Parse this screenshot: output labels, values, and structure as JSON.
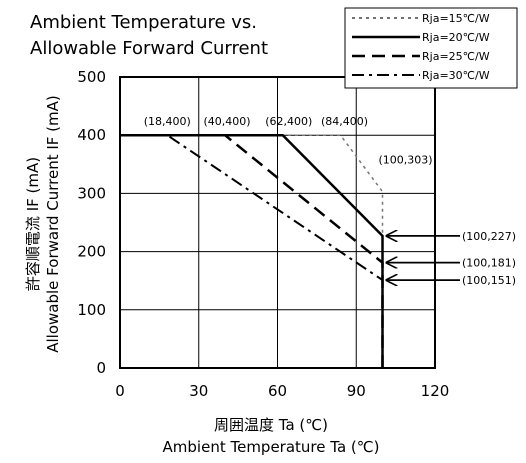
{
  "title_lines": [
    "Ambient Temperature vs.",
    "Allowable Forward Current"
  ],
  "chart_data": {
    "type": "line",
    "title": "Ambient Temperature vs. Allowable Forward Current",
    "xlabel_jp": "周囲温度 Ta (℃)",
    "xlabel": "Ambient Temperature Ta (℃)",
    "ylabel_jp": "許容順電流 IF (mA)",
    "ylabel": "Allowable Forward Current IF (mA)",
    "xlim": [
      0,
      120
    ],
    "ylim": [
      0,
      500
    ],
    "xticks": [
      0,
      30,
      60,
      90,
      120
    ],
    "yticks": [
      0,
      100,
      200,
      300,
      400,
      500
    ],
    "grid": true,
    "legend_position": "top-right",
    "series": [
      {
        "name": "Rja=15℃/W",
        "style": "dotted",
        "x": [
          0,
          84,
          100,
          100
        ],
        "y": [
          400,
          400,
          303,
          0
        ]
      },
      {
        "name": "Rja=20℃/W",
        "style": "solid",
        "x": [
          0,
          62,
          100,
          100
        ],
        "y": [
          400,
          400,
          227,
          0
        ]
      },
      {
        "name": "Rja=25℃/W",
        "style": "dashed",
        "x": [
          0,
          40,
          100,
          100
        ],
        "y": [
          400,
          400,
          181,
          0
        ]
      },
      {
        "name": "Rja=30℃/W",
        "style": "dashdot",
        "x": [
          0,
          18,
          100,
          100
        ],
        "y": [
          400,
          400,
          151,
          0
        ]
      }
    ],
    "annotations": [
      {
        "text": "(18,400)",
        "x": 18,
        "y": 400
      },
      {
        "text": "(40,400)",
        "x": 40,
        "y": 400
      },
      {
        "text": "(62,400)",
        "x": 62,
        "y": 400
      },
      {
        "text": "(84,400)",
        "x": 84,
        "y": 400
      },
      {
        "text": "(100,303)",
        "x": 100,
        "y": 303
      },
      {
        "text": "(100,227)",
        "x": 100,
        "y": 227,
        "arrow": true
      },
      {
        "text": "(100,181)",
        "x": 100,
        "y": 181,
        "arrow": true
      },
      {
        "text": "(100,151)",
        "x": 100,
        "y": 151,
        "arrow": true
      }
    ]
  }
}
